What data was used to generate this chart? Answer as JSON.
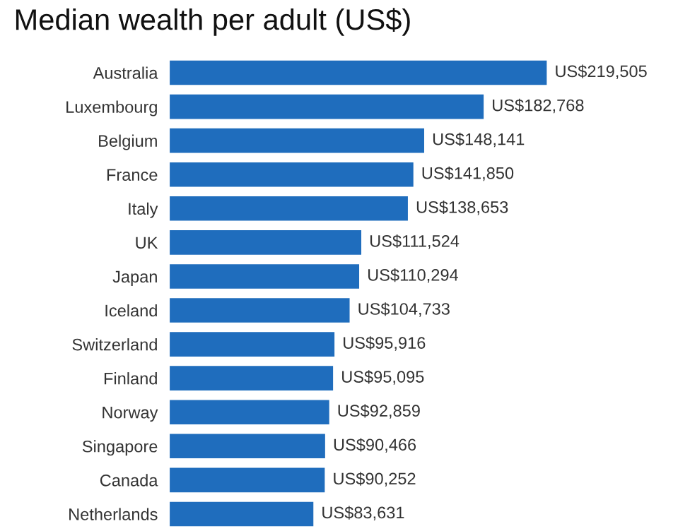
{
  "chart_data": {
    "type": "bar",
    "orientation": "horizontal",
    "title": "Median wealth per adult (US$)",
    "categories": [
      "Australia",
      "Luxembourg",
      "Belgium",
      "France",
      "Italy",
      "UK",
      "Japan",
      "Iceland",
      "Switzerland",
      "Finland",
      "Norway",
      "Singapore",
      "Canada",
      "Netherlands"
    ],
    "values": [
      219505,
      182768,
      148141,
      141850,
      138653,
      111524,
      110294,
      104733,
      95916,
      95095,
      92859,
      90466,
      90252,
      83631
    ],
    "value_labels": [
      "US$219,505",
      "US$182,768",
      "US$148,141",
      "US$141,850",
      "US$138,653",
      "US$111,524",
      "US$110,294",
      "US$104,733",
      "US$95,916",
      "US$95,095",
      "US$92,859",
      "US$90,466",
      "US$90,252",
      "US$83,631"
    ],
    "color": "#1f6dbd",
    "grid": false,
    "legend": false
  }
}
